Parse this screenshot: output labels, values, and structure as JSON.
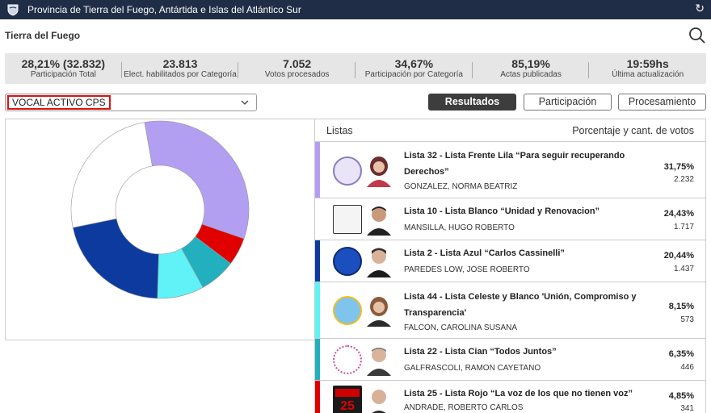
{
  "topbar": {
    "title": "Provincia de Tierra del Fuego, Antártida e Islas del Atlántico Sur"
  },
  "header": {
    "title": "Tierra del Fuego"
  },
  "stats": [
    {
      "value": "28,21% (32.832)",
      "label": "Participación Total"
    },
    {
      "value": "23.813",
      "label": "Elect. habilitados por Categoría"
    },
    {
      "value": "7.052",
      "label": "Votos procesados"
    },
    {
      "value": "34,67%",
      "label": "Participación por Categoría"
    },
    {
      "value": "85,19%",
      "label": "Actas publicadas"
    },
    {
      "value": "19:59hs",
      "label": "Última actualización"
    }
  ],
  "category_select": {
    "value": "VOCAL ACTIVO CPS"
  },
  "buttons": {
    "results": "Resultados",
    "participation": "Participación",
    "processing": "Procesamiento"
  },
  "list_header": {
    "left": "Listas",
    "right": "Porcentaje y cant. de votos"
  },
  "lists": [
    {
      "name_line1": "Lista 32 - Lista Frente Lila “Para seguir recuperando",
      "name_line2": "Derechos”",
      "candidate": "GONZALEZ, NORMA BEATRIZ",
      "percent": "31,75%",
      "votes": "2.232",
      "color": "#b39ff2"
    },
    {
      "name_line1": "Lista 10 - Lista Blanco “Unidad y Renovacion”",
      "name_line2": "",
      "candidate": "MANSILLA, HUGO ROBERTO",
      "percent": "24,43%",
      "votes": "1.717",
      "color": "#ffffff"
    },
    {
      "name_line1": "Lista 2 - Lista Azul “Carlos Cassinelli”",
      "name_line2": "",
      "candidate": "PAREDES LOW, JOSE ROBERTO",
      "percent": "20,44%",
      "votes": "1.437",
      "color": "#0d3a9e"
    },
    {
      "name_line1": "Lista 44 - Lista Celeste y Blanco 'Unión, Compromiso y",
      "name_line2": "Transparencia'",
      "candidate": "FALCON, CAROLINA SUSANA",
      "percent": "8,15%",
      "votes": "573",
      "color": "#5ff2f6"
    },
    {
      "name_line1": "Lista 22 - Lista Cian “Todos Juntos”",
      "name_line2": "",
      "candidate": "GALFRASCOLI, RAMON CAYETANO",
      "percent": "6,35%",
      "votes": "446",
      "color": "#22b0bf"
    },
    {
      "name_line1": "Lista 25 - Lista Rojo “La voz de los que no tienen voz”",
      "name_line2": "",
      "candidate": "ANDRADE, ROBERTO CARLOS",
      "percent": "4,85%",
      "votes": "341",
      "color": "#e00000"
    }
  ],
  "chart_data": {
    "type": "pie",
    "labels": [
      "Lista 32",
      "Lista 10",
      "Lista 2",
      "Lista 44",
      "Lista 22",
      "Lista 25"
    ],
    "values": [
      31.75,
      24.43,
      20.44,
      8.15,
      6.35,
      4.85
    ],
    "colors": [
      "#b39ff2",
      "#ffffff",
      "#0d3a9e",
      "#5ff2f6",
      "#22b0bf",
      "#e00000"
    ]
  }
}
